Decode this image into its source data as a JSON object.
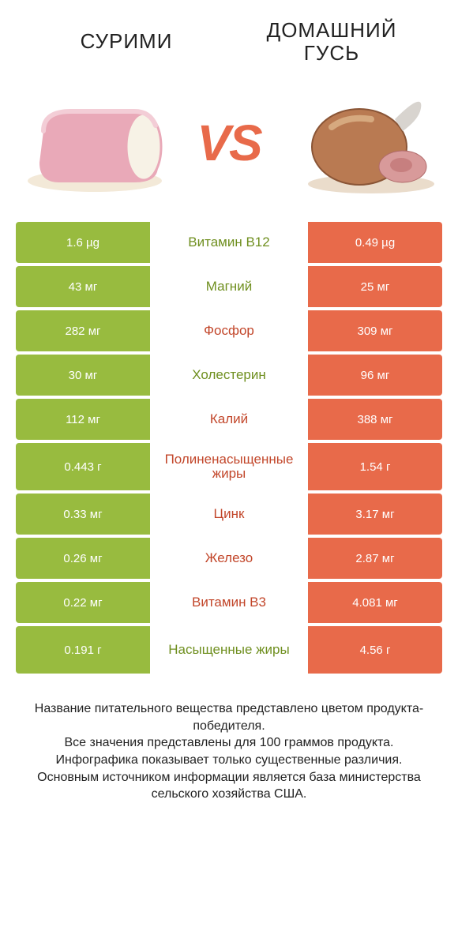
{
  "colors": {
    "green": "#98bb3f",
    "orange": "#e86a4a",
    "green_dark": "#6f8f1f",
    "orange_dark": "#c2462a",
    "bg": "#ffffff",
    "text": "#222222"
  },
  "header": {
    "left_title": "СУРИМИ",
    "right_title_line1": "ДОМАШНИЙ",
    "right_title_line2": "ГУСЬ",
    "vs": "VS"
  },
  "rows": [
    {
      "left": "1.6 µg",
      "label": "Витамин B12",
      "right": "0.49 µg",
      "winner": "left",
      "tall": false
    },
    {
      "left": "43 мг",
      "label": "Магний",
      "right": "25 мг",
      "winner": "left",
      "tall": false
    },
    {
      "left": "282 мг",
      "label": "Фосфор",
      "right": "309 мг",
      "winner": "right",
      "tall": false
    },
    {
      "left": "30 мг",
      "label": "Холестерин",
      "right": "96 мг",
      "winner": "left",
      "tall": false
    },
    {
      "left": "112 мг",
      "label": "Калий",
      "right": "388 мг",
      "winner": "right",
      "tall": false
    },
    {
      "left": "0.443 г",
      "label": "Полиненасыщенные жиры",
      "right": "1.54 г",
      "winner": "right",
      "tall": true
    },
    {
      "left": "0.33 мг",
      "label": "Цинк",
      "right": "3.17 мг",
      "winner": "right",
      "tall": false
    },
    {
      "left": "0.26 мг",
      "label": "Железо",
      "right": "2.87 мг",
      "winner": "right",
      "tall": false
    },
    {
      "left": "0.22 мг",
      "label": "Витамин B3",
      "right": "4.081 мг",
      "winner": "right",
      "tall": false
    },
    {
      "left": "0.191 г",
      "label": "Насыщенные жиры",
      "right": "4.56 г",
      "winner": "left",
      "tall": true
    }
  ],
  "footer": {
    "line1": "Название питательного вещества представлено цветом продукта-победителя.",
    "line2": "Все значения представлены для 100 граммов продукта.",
    "line3": "Инфографика показывает только существенные различия.",
    "line4": "Основным источником информации является база министерства сельского хозяйства США."
  }
}
